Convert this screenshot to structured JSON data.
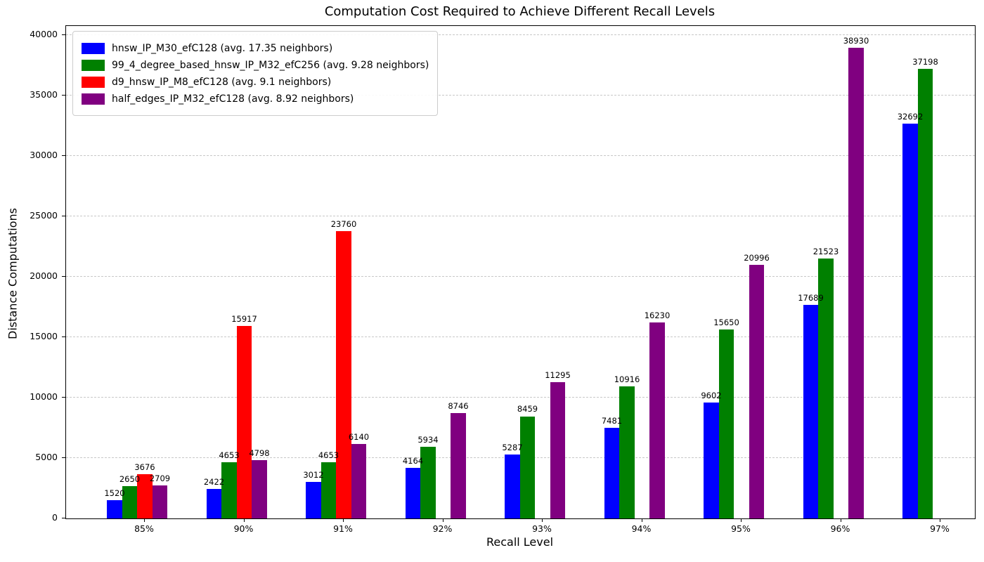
{
  "chart_data": {
    "type": "bar",
    "title": "Computation Cost Required to Achieve Different Recall Levels",
    "xlabel": "Recall Level",
    "ylabel": "Distance Computations",
    "categories": [
      "85%",
      "90%",
      "91%",
      "92%",
      "93%",
      "94%",
      "95%",
      "96%",
      "97%"
    ],
    "series": [
      {
        "name": "hnsw_IP_M30_efC128 (avg. 17.35 neighbors)",
        "color": "#0000ff",
        "values": [
          1520,
          2422,
          3012,
          4164,
          5287,
          7481,
          9602,
          17689,
          32692
        ]
      },
      {
        "name": "99_4_degree_based_hnsw_IP_M32_efC256 (avg. 9.28 neighbors)",
        "color": "#008000",
        "values": [
          2650,
          4653,
          4653,
          5934,
          8459,
          10916,
          15650,
          21523,
          37198
        ]
      },
      {
        "name": "d9_hnsw_IP_M8_efC128 (avg. 9.1 neighbors)",
        "color": "#ff0000",
        "values": [
          3676,
          15917,
          23760,
          null,
          null,
          null,
          null,
          null,
          null
        ]
      },
      {
        "name": "half_edges_IP_M32_efC128 (avg. 8.92 neighbors)",
        "color": "#800080",
        "values": [
          2709,
          4798,
          6140,
          8746,
          11295,
          16230,
          20996,
          38930,
          null
        ]
      }
    ],
    "yticks": [
      0,
      5000,
      10000,
      15000,
      20000,
      25000,
      30000,
      35000,
      40000
    ],
    "ylim": [
      0,
      40750
    ],
    "grid": "horizontal-dashed",
    "legend_position": "upper-left",
    "bar_value_labels": true
  }
}
